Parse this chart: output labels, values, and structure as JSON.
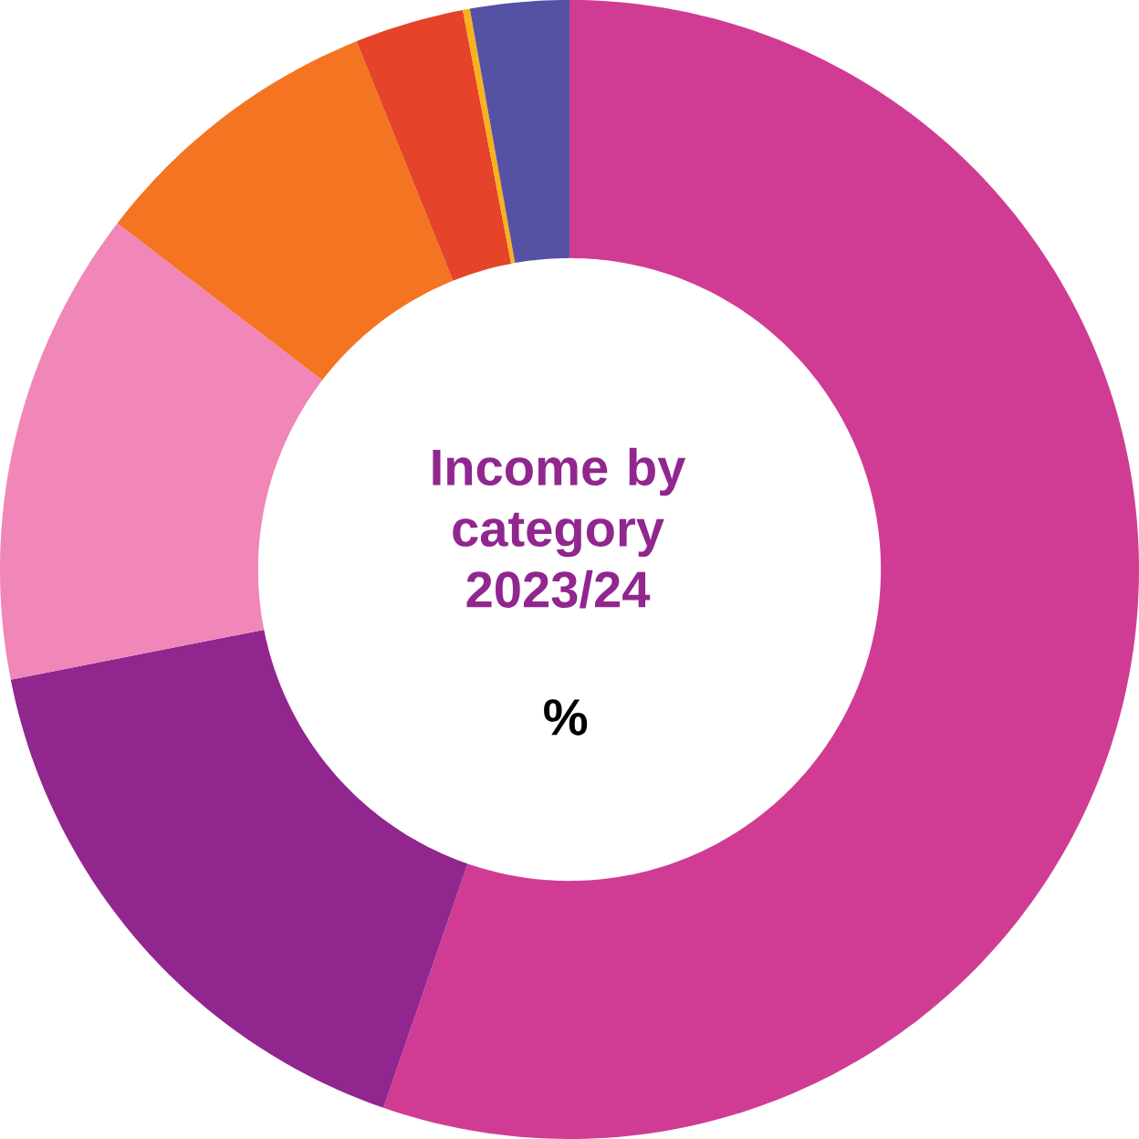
{
  "chart_data": {
    "type": "donut",
    "title": "Income by category 2023/24",
    "subtitle": "%",
    "categories": [
      null,
      null,
      null,
      null,
      null,
      null,
      null
    ],
    "values": [
      55.3,
      16.6,
      13.5,
      8.5,
      3.1,
      0.2,
      2.8
    ],
    "colors": [
      "#d03c94",
      "#91268f",
      "#f087b8",
      "#f47422",
      "#e5432a",
      "#f9b21b",
      "#5652a3"
    ]
  }
}
